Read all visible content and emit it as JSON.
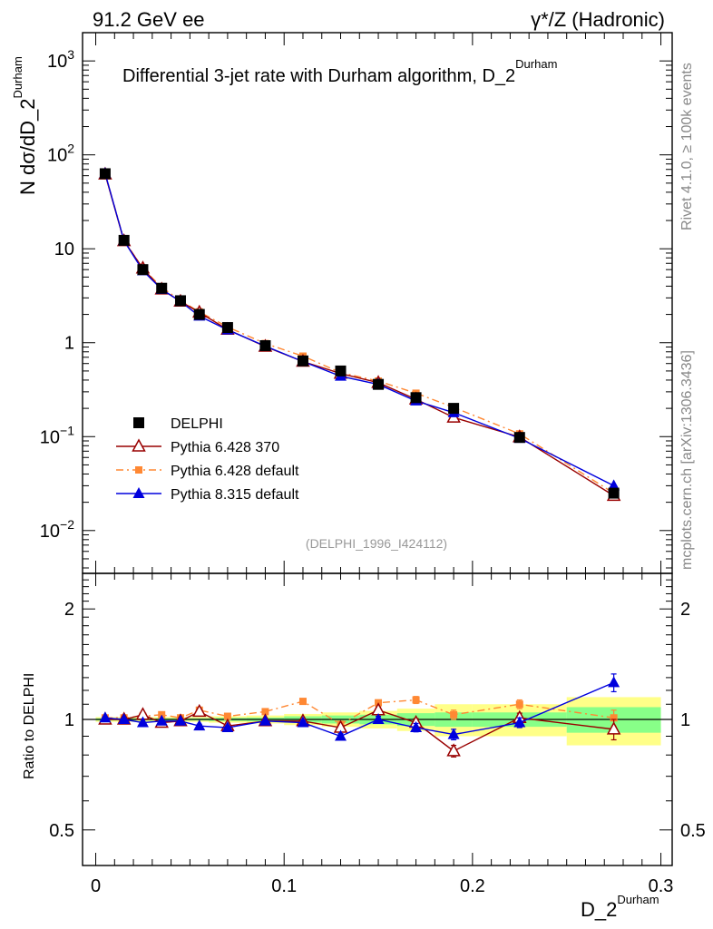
{
  "header": {
    "left": "91.2 GeV ee",
    "right": "γ*/Z (Hadronic)"
  },
  "side_labels": {
    "rivet": "Rivet 4.1.0, ≥ 100k events",
    "mcplots": "mcplots.cern.ch [arXiv:1306.3436]"
  },
  "colors": {
    "data": "#000000",
    "p6_370": "#990000",
    "p6_default": "#ff8833",
    "p8_default": "#0000dd",
    "band_outer": "#ffff88",
    "band_inner": "#88ff88"
  },
  "chart_data": [
    {
      "type": "line",
      "panel": "main",
      "title": "Differential 3-jet rate with Durham algorithm, D_2",
      "title_superscript": "Durham",
      "ylabel": "N  dσ/dD_2",
      "ylabel_superscript": "Durham",
      "yscale": "log",
      "ylim": [
        0.0035,
        2000
      ],
      "xlim": [
        -0.007,
        0.306
      ],
      "y_ticks": [
        {
          "value": 1000,
          "base": "10",
          "exp": "3"
        },
        {
          "value": 100,
          "base": "10",
          "exp": "2"
        },
        {
          "value": 10,
          "base": "10",
          "exp": ""
        },
        {
          "value": 1,
          "base": "1",
          "exp": ""
        },
        {
          "value": 0.1,
          "base": "10",
          "exp": "−1"
        },
        {
          "value": 0.01,
          "base": "10",
          "exp": "−2"
        }
      ],
      "watermark": "(DELPHI_1996_I424112)",
      "legend_position": "lower-left",
      "x": [
        0.005,
        0.015,
        0.025,
        0.035,
        0.045,
        0.055,
        0.07,
        0.09,
        0.11,
        0.13,
        0.15,
        0.17,
        0.19,
        0.225,
        0.275
      ],
      "series": [
        {
          "name": "DELPHI",
          "key": "data",
          "marker": "square",
          "values": [
            63,
            12.3,
            6.0,
            3.8,
            2.8,
            2.0,
            1.45,
            0.93,
            0.64,
            0.5,
            0.36,
            0.26,
            0.2,
            0.098,
            0.025
          ]
        },
        {
          "name": "Pythia 6.428 370",
          "key": "p6_370",
          "marker": "open-triangle",
          "values": [
            62,
            12.1,
            6.2,
            3.7,
            2.75,
            2.1,
            1.38,
            0.91,
            0.63,
            0.47,
            0.375,
            0.25,
            0.16,
            0.099,
            0.0235
          ]
        },
        {
          "name": "Pythia 6.428 default",
          "key": "p6_default",
          "marker": "small-square",
          "values": [
            63.5,
            12.4,
            6.15,
            3.9,
            2.8,
            2.13,
            1.47,
            0.98,
            0.72,
            0.48,
            0.39,
            0.29,
            0.205,
            0.107,
            0.025
          ]
        },
        {
          "name": "Pythia 8.315 default",
          "key": "p8_default",
          "marker": "triangle",
          "values": [
            63.5,
            12.2,
            5.85,
            3.7,
            2.75,
            1.92,
            1.37,
            0.92,
            0.63,
            0.44,
            0.36,
            0.24,
            0.18,
            0.096,
            0.03
          ]
        }
      ]
    },
    {
      "type": "line",
      "panel": "ratio",
      "ylabel": "Ratio to DELPHI",
      "ylim": [
        0.4,
        2.5
      ],
      "y_ticks": [
        {
          "value": 2,
          "label": "2"
        },
        {
          "value": 1,
          "label": "1"
        },
        {
          "value": 0.5,
          "label": "0.5"
        }
      ],
      "xlabel": "D_2",
      "xlabel_superscript": "Durham",
      "x_ticks": [
        {
          "value": 0,
          "label": "0"
        },
        {
          "value": 0.1,
          "label": "0.1"
        },
        {
          "value": 0.2,
          "label": "0.2"
        },
        {
          "value": 0.3,
          "label": "0.3"
        }
      ],
      "x": [
        0.005,
        0.015,
        0.025,
        0.035,
        0.045,
        0.055,
        0.07,
        0.09,
        0.11,
        0.13,
        0.15,
        0.17,
        0.19,
        0.225,
        0.275
      ],
      "bands": [
        {
          "x0": 0.0,
          "x1": 0.01,
          "outer": [
            0.985,
            1.015
          ],
          "inner": [
            0.993,
            1.007
          ]
        },
        {
          "x0": 0.01,
          "x1": 0.02,
          "outer": [
            0.985,
            1.015
          ],
          "inner": [
            0.993,
            1.007
          ]
        },
        {
          "x0": 0.02,
          "x1": 0.03,
          "outer": [
            0.985,
            1.015
          ],
          "inner": [
            0.993,
            1.007
          ]
        },
        {
          "x0": 0.03,
          "x1": 0.04,
          "outer": [
            0.985,
            1.015
          ],
          "inner": [
            0.993,
            1.007
          ]
        },
        {
          "x0": 0.04,
          "x1": 0.05,
          "outer": [
            0.985,
            1.015
          ],
          "inner": [
            0.993,
            1.007
          ]
        },
        {
          "x0": 0.05,
          "x1": 0.06,
          "outer": [
            0.985,
            1.015
          ],
          "inner": [
            0.993,
            1.007
          ]
        },
        {
          "x0": 0.06,
          "x1": 0.08,
          "outer": [
            0.98,
            1.02
          ],
          "inner": [
            0.99,
            1.01
          ]
        },
        {
          "x0": 0.08,
          "x1": 0.1,
          "outer": [
            0.975,
            1.025
          ],
          "inner": [
            0.988,
            1.012
          ]
        },
        {
          "x0": 0.1,
          "x1": 0.12,
          "outer": [
            0.965,
            1.035
          ],
          "inner": [
            0.98,
            1.02
          ]
        },
        {
          "x0": 0.12,
          "x1": 0.14,
          "outer": [
            0.955,
            1.045
          ],
          "inner": [
            0.975,
            1.025
          ]
        },
        {
          "x0": 0.14,
          "x1": 0.16,
          "outer": [
            0.945,
            1.055
          ],
          "inner": [
            0.97,
            1.03
          ]
        },
        {
          "x0": 0.16,
          "x1": 0.18,
          "outer": [
            0.93,
            1.07
          ],
          "inner": [
            0.96,
            1.04
          ]
        },
        {
          "x0": 0.18,
          "x1": 0.2,
          "outer": [
            0.9,
            1.1
          ],
          "inner": [
            0.955,
            1.045
          ]
        },
        {
          "x0": 0.2,
          "x1": 0.25,
          "outer": [
            0.9,
            1.1
          ],
          "inner": [
            0.955,
            1.045
          ]
        },
        {
          "x0": 0.25,
          "x1": 0.3,
          "outer": [
            0.85,
            1.15
          ],
          "inner": [
            0.92,
            1.08
          ]
        }
      ],
      "series": [
        {
          "name": "Pythia 6.428 370",
          "key": "p6_370",
          "marker": "open-triangle",
          "values": [
            1.0,
            1.0,
            1.03,
            0.98,
            0.99,
            1.05,
            0.96,
            0.99,
            0.99,
            0.95,
            1.06,
            0.98,
            0.82,
            1.01,
            0.94
          ],
          "errors": [
            0.005,
            0.005,
            0.007,
            0.008,
            0.008,
            0.01,
            0.01,
            0.01,
            0.015,
            0.015,
            0.02,
            0.025,
            0.03,
            0.03,
            0.06
          ]
        },
        {
          "name": "Pythia 6.428 default",
          "key": "p6_default",
          "marker": "small-square",
          "values": [
            1.01,
            1.01,
            1.02,
            1.03,
            1.01,
            1.06,
            1.02,
            1.05,
            1.12,
            0.97,
            1.11,
            1.13,
            1.03,
            1.1,
            1.01
          ],
          "errors": [
            0.005,
            0.005,
            0.006,
            0.007,
            0.008,
            0.009,
            0.01,
            0.01,
            0.015,
            0.015,
            0.02,
            0.025,
            0.03,
            0.03,
            0.05
          ]
        },
        {
          "name": "Pythia 8.315 default",
          "key": "p8_default",
          "marker": "triangle",
          "values": [
            1.01,
            1.0,
            0.98,
            0.99,
            0.99,
            0.96,
            0.95,
            0.99,
            0.98,
            0.9,
            1.0,
            0.95,
            0.91,
            0.98,
            1.26
          ],
          "errors": [
            0.005,
            0.005,
            0.007,
            0.008,
            0.008,
            0.01,
            0.01,
            0.01,
            0.015,
            0.015,
            0.02,
            0.025,
            0.03,
            0.03,
            0.07
          ]
        }
      ]
    }
  ]
}
